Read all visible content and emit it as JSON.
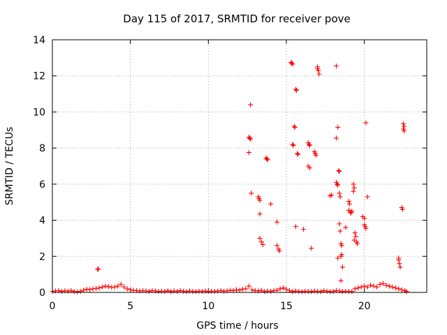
{
  "chart_data": {
    "type": "scatter",
    "title": "Day 115 of 2017, SRMTID for receiver pove",
    "xlabel": "GPS time / hours",
    "ylabel": "SRMTID / TECUs",
    "xlim": [
      0,
      24
    ],
    "ylim": [
      0,
      14
    ],
    "xticks": [
      "0",
      "5",
      "10",
      "15",
      "20"
    ],
    "yticks": [
      "0",
      "2",
      "4",
      "6",
      "8",
      "10",
      "12",
      "14"
    ],
    "grid": true,
    "marker": "+",
    "color": "#ff0000",
    "series": [
      {
        "baseline_note": "",
        "points": [
          [
            0.0,
            0.05
          ],
          [
            0.2,
            0.08
          ],
          [
            0.4,
            0.1
          ],
          [
            0.6,
            0.06
          ],
          [
            0.8,
            0.09
          ],
          [
            1.0,
            0.07
          ],
          [
            1.2,
            0.1
          ],
          [
            1.4,
            0.05
          ],
          [
            1.6,
            0.03
          ],
          [
            1.8,
            0.06
          ],
          [
            2.0,
            0.12
          ],
          [
            2.2,
            0.18
          ],
          [
            2.4,
            0.15
          ],
          [
            2.6,
            0.2
          ],
          [
            2.8,
            0.22
          ],
          [
            3.0,
            0.25
          ],
          [
            3.2,
            0.3
          ],
          [
            3.4,
            0.35
          ],
          [
            3.6,
            0.32
          ],
          [
            3.8,
            0.28
          ],
          [
            4.0,
            0.3
          ],
          [
            4.2,
            0.35
          ],
          [
            4.4,
            0.45
          ],
          [
            4.6,
            0.3
          ],
          [
            4.8,
            0.2
          ],
          [
            5.0,
            0.15
          ],
          [
            5.2,
            0.12
          ],
          [
            5.4,
            0.1
          ],
          [
            5.6,
            0.08
          ],
          [
            5.8,
            0.1
          ],
          [
            6.0,
            0.08
          ],
          [
            6.2,
            0.06
          ],
          [
            6.4,
            0.1
          ],
          [
            6.6,
            0.08
          ],
          [
            6.8,
            0.05
          ],
          [
            7.0,
            0.07
          ],
          [
            7.2,
            0.06
          ],
          [
            7.4,
            0.1
          ],
          [
            7.6,
            0.05
          ],
          [
            7.8,
            0.08
          ],
          [
            8.0,
            0.06
          ],
          [
            8.2,
            0.1
          ],
          [
            8.4,
            0.07
          ],
          [
            8.6,
            0.05
          ],
          [
            8.8,
            0.08
          ],
          [
            9.0,
            0.06
          ],
          [
            9.2,
            0.05
          ],
          [
            9.4,
            0.07
          ],
          [
            9.6,
            0.06
          ],
          [
            9.8,
            0.08
          ],
          [
            10.0,
            0.05
          ],
          [
            10.2,
            0.07
          ],
          [
            10.4,
            0.06
          ],
          [
            10.6,
            0.08
          ],
          [
            10.8,
            0.1
          ],
          [
            11.0,
            0.07
          ],
          [
            11.2,
            0.09
          ],
          [
            11.4,
            0.12
          ],
          [
            11.6,
            0.1
          ],
          [
            11.8,
            0.15
          ],
          [
            12.0,
            0.12
          ],
          [
            12.2,
            0.18
          ],
          [
            12.4,
            0.2
          ],
          [
            12.6,
            0.35
          ],
          [
            12.8,
            0.15
          ],
          [
            13.0,
            0.1
          ],
          [
            13.2,
            0.08
          ],
          [
            13.4,
            0.12
          ],
          [
            13.6,
            0.05
          ],
          [
            13.8,
            0.08
          ],
          [
            14.0,
            0.06
          ],
          [
            14.2,
            0.1
          ],
          [
            14.4,
            0.12
          ],
          [
            14.6,
            0.2
          ],
          [
            14.8,
            0.25
          ],
          [
            15.0,
            0.18
          ],
          [
            15.2,
            0.1
          ],
          [
            15.4,
            0.05
          ],
          [
            15.6,
            0.08
          ],
          [
            15.8,
            0.06
          ],
          [
            16.0,
            0.05
          ],
          [
            16.2,
            0.07
          ],
          [
            16.4,
            0.06
          ],
          [
            16.6,
            0.05
          ],
          [
            16.8,
            0.08
          ],
          [
            17.0,
            0.06
          ],
          [
            17.2,
            0.05
          ],
          [
            17.4,
            0.1
          ],
          [
            17.6,
            0.07
          ],
          [
            17.8,
            0.05
          ],
          [
            18.0,
            0.06
          ],
          [
            18.2,
            0.1
          ],
          [
            18.4,
            0.08
          ],
          [
            18.6,
            0.05
          ],
          [
            18.8,
            0.07
          ],
          [
            19.0,
            0.06
          ],
          [
            19.2,
            0.05
          ],
          [
            19.4,
            0.2
          ],
          [
            19.6,
            0.25
          ],
          [
            19.8,
            0.3
          ],
          [
            20.0,
            0.35
          ],
          [
            20.2,
            0.3
          ],
          [
            20.4,
            0.4
          ],
          [
            20.6,
            0.35
          ],
          [
            20.8,
            0.3
          ],
          [
            21.0,
            0.45
          ],
          [
            21.2,
            0.5
          ],
          [
            21.4,
            0.4
          ],
          [
            21.6,
            0.35
          ],
          [
            21.8,
            0.3
          ],
          [
            22.0,
            0.25
          ],
          [
            22.2,
            0.2
          ],
          [
            22.4,
            0.15
          ],
          [
            22.6,
            0.1
          ],
          [
            22.7,
            0.05
          ],
          [
            2.9,
            1.28
          ],
          [
            2.95,
            1.3
          ]
        ]
      },
      {
        "points": [
          [
            12.7,
            10.4
          ],
          [
            12.6,
            8.6
          ],
          [
            12.65,
            8.55
          ],
          [
            12.7,
            8.5
          ],
          [
            12.6,
            7.75
          ],
          [
            12.75,
            5.5
          ],
          [
            13.2,
            5.3
          ],
          [
            13.25,
            5.2
          ],
          [
            13.3,
            5.1
          ],
          [
            13.3,
            4.35
          ],
          [
            13.3,
            3.0
          ],
          [
            13.4,
            2.8
          ],
          [
            13.5,
            2.65
          ],
          [
            13.7,
            7.45
          ],
          [
            13.75,
            7.4
          ],
          [
            13.8,
            7.35
          ],
          [
            14.0,
            4.9
          ],
          [
            14.4,
            3.9
          ],
          [
            14.4,
            2.6
          ],
          [
            14.5,
            2.4
          ],
          [
            14.55,
            2.3
          ],
          [
            15.3,
            12.75
          ],
          [
            15.35,
            12.7
          ],
          [
            15.4,
            12.65
          ],
          [
            15.6,
            11.25
          ],
          [
            15.65,
            11.2
          ],
          [
            15.5,
            9.2
          ],
          [
            15.55,
            9.15
          ],
          [
            15.4,
            8.2
          ],
          [
            15.45,
            8.15
          ],
          [
            15.7,
            7.7
          ],
          [
            15.75,
            7.65
          ],
          [
            15.6,
            3.65
          ],
          [
            16.1,
            3.5
          ],
          [
            16.4,
            8.3
          ],
          [
            16.45,
            8.2
          ],
          [
            16.5,
            8.15
          ],
          [
            16.4,
            7.0
          ],
          [
            16.5,
            6.9
          ],
          [
            16.6,
            2.45
          ],
          [
            16.8,
            7.8
          ],
          [
            16.85,
            7.7
          ],
          [
            16.9,
            7.6
          ],
          [
            17.0,
            12.5
          ],
          [
            17.05,
            12.3
          ],
          [
            17.1,
            12.1
          ],
          [
            17.0,
            12.4
          ],
          [
            17.8,
            5.35
          ],
          [
            17.9,
            5.4
          ],
          [
            18.2,
            12.55
          ],
          [
            18.3,
            9.15
          ],
          [
            18.2,
            8.55
          ],
          [
            18.35,
            6.75
          ],
          [
            18.4,
            6.7
          ],
          [
            18.2,
            6.1
          ],
          [
            18.25,
            6.0
          ],
          [
            18.3,
            5.95
          ],
          [
            18.4,
            5.5
          ],
          [
            18.45,
            5.3
          ],
          [
            18.4,
            3.8
          ],
          [
            18.45,
            3.4
          ],
          [
            18.3,
            1.9
          ],
          [
            18.5,
            2.7
          ],
          [
            18.55,
            2.6
          ],
          [
            18.5,
            2.0
          ],
          [
            18.55,
            2.1
          ],
          [
            18.6,
            1.4
          ],
          [
            18.5,
            0.65
          ],
          [
            18.8,
            3.6
          ],
          [
            19.0,
            5.05
          ],
          [
            19.05,
            4.9
          ],
          [
            19.0,
            4.55
          ],
          [
            19.1,
            4.45
          ],
          [
            19.15,
            4.4
          ],
          [
            19.2,
            4.5
          ],
          [
            19.3,
            6.0
          ],
          [
            19.35,
            5.8
          ],
          [
            19.3,
            5.6
          ],
          [
            19.4,
            3.3
          ],
          [
            19.45,
            3.1
          ],
          [
            19.35,
            2.9
          ],
          [
            19.5,
            2.8
          ],
          [
            19.55,
            2.7
          ],
          [
            19.9,
            4.2
          ],
          [
            20.0,
            4.1
          ],
          [
            20.0,
            3.75
          ],
          [
            20.05,
            3.65
          ],
          [
            20.1,
            3.55
          ],
          [
            20.1,
            9.4
          ],
          [
            20.2,
            5.3
          ],
          [
            22.2,
            1.8
          ],
          [
            22.25,
            1.6
          ],
          [
            22.3,
            1.4
          ],
          [
            22.2,
            1.9
          ],
          [
            22.4,
            4.7
          ],
          [
            22.45,
            4.6
          ],
          [
            22.5,
            9.35
          ],
          [
            22.55,
            9.2
          ],
          [
            22.5,
            9.05
          ],
          [
            22.55,
            8.95
          ]
        ]
      }
    ]
  }
}
